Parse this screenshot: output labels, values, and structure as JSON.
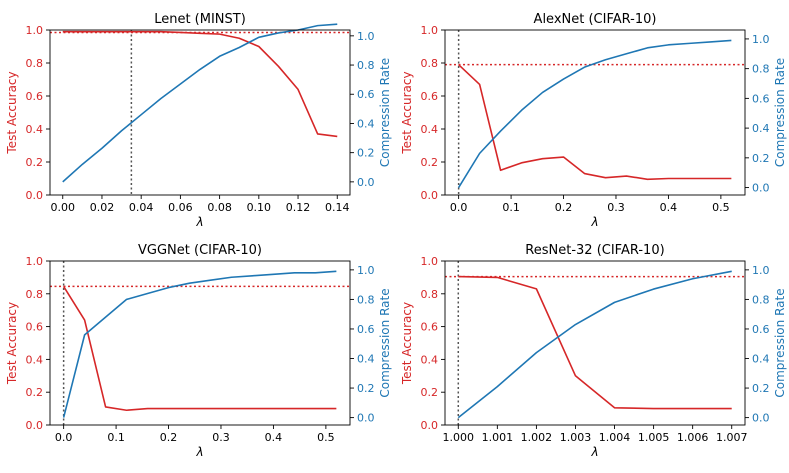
{
  "colors": {
    "accuracy": "#d62728",
    "compression": "#1f77b4",
    "axis": "#000000"
  },
  "chart_data": [
    {
      "type": "line",
      "title": "Lenet (MINST)",
      "xlabel": "λ",
      "ylabel_left": "Test Accuracy",
      "ylabel_right": "Compression Rate",
      "xlim": [
        -0.0065,
        0.1465
      ],
      "ylim_left": [
        0,
        1
      ],
      "ylim_right": [
        -0.09,
        1.04
      ],
      "xticks": [
        0.0,
        0.02,
        0.04,
        0.06,
        0.08,
        0.1,
        0.12,
        0.14
      ],
      "xtick_labels": [
        "0.00",
        "0.02",
        "0.04",
        "0.06",
        "0.08",
        "0.10",
        "0.12",
        "0.14"
      ],
      "yticks_left": [
        0.0,
        0.2,
        0.4,
        0.6,
        0.8,
        1.0
      ],
      "ytick_labels_left": [
        "0.0",
        "0.2",
        "0.4",
        "0.6",
        "0.8",
        "1.0"
      ],
      "yticks_right": [
        0.0,
        0.2,
        0.4,
        0.6,
        0.8,
        1.0
      ],
      "ytick_labels_right": [
        "0.0",
        "0.2",
        "0.4",
        "0.6",
        "0.8",
        "1.0"
      ],
      "hline_accuracy": 0.985,
      "vline_x": 0.035,
      "series": [
        {
          "name": "Test Accuracy",
          "axis": "left",
          "x": [
            0,
            0.01,
            0.02,
            0.03,
            0.04,
            0.05,
            0.06,
            0.07,
            0.08,
            0.09,
            0.1,
            0.11,
            0.12,
            0.13,
            0.14
          ],
          "values": [
            0.99,
            0.99,
            0.99,
            0.99,
            0.99,
            0.99,
            0.985,
            0.98,
            0.975,
            0.95,
            0.9,
            0.78,
            0.64,
            0.37,
            0.355
          ]
        },
        {
          "name": "Compression Rate",
          "axis": "right",
          "x": [
            0,
            0.01,
            0.02,
            0.03,
            0.04,
            0.05,
            0.06,
            0.07,
            0.08,
            0.09,
            0.1,
            0.11,
            0.12,
            0.13,
            0.14
          ],
          "values": [
            0.0,
            0.12,
            0.23,
            0.35,
            0.46,
            0.57,
            0.67,
            0.77,
            0.86,
            0.92,
            0.99,
            1.02,
            1.04,
            1.07,
            1.08
          ]
        }
      ]
    },
    {
      "type": "line",
      "title": "AlexNet (CIFAR-10)",
      "xlabel": "λ",
      "ylabel_left": "Test Accuracy",
      "ylabel_right": "Compression Rate",
      "xlim": [
        -0.026,
        0.546
      ],
      "ylim_left": [
        0,
        1
      ],
      "ylim_right": [
        -0.05,
        1.06
      ],
      "xticks": [
        0.0,
        0.1,
        0.2,
        0.3,
        0.4,
        0.5
      ],
      "xtick_labels": [
        "0.0",
        "0.1",
        "0.2",
        "0.3",
        "0.4",
        "0.5"
      ],
      "yticks_left": [
        0.0,
        0.2,
        0.4,
        0.6,
        0.8,
        1.0
      ],
      "ytick_labels_left": [
        "0.0",
        "0.2",
        "0.4",
        "0.6",
        "0.8",
        "1.0"
      ],
      "yticks_right": [
        0.0,
        0.2,
        0.4,
        0.6,
        0.8,
        1.0
      ],
      "ytick_labels_right": [
        "0.0",
        "0.2",
        "0.4",
        "0.6",
        "0.8",
        "1.0"
      ],
      "hline_accuracy": 0.79,
      "vline_x": 0.0,
      "series": [
        {
          "name": "Test Accuracy",
          "axis": "left",
          "x": [
            0,
            0.04,
            0.08,
            0.12,
            0.16,
            0.2,
            0.24,
            0.28,
            0.32,
            0.36,
            0.4,
            0.44,
            0.48,
            0.52
          ],
          "values": [
            0.79,
            0.67,
            0.15,
            0.195,
            0.22,
            0.23,
            0.13,
            0.105,
            0.115,
            0.095,
            0.1,
            0.1,
            0.1,
            0.1
          ]
        },
        {
          "name": "Compression Rate",
          "axis": "right",
          "x": [
            0,
            0.04,
            0.08,
            0.12,
            0.16,
            0.2,
            0.24,
            0.28,
            0.32,
            0.36,
            0.4,
            0.44,
            0.48,
            0.52
          ],
          "values": [
            0.0,
            0.23,
            0.38,
            0.52,
            0.64,
            0.73,
            0.81,
            0.86,
            0.9,
            0.94,
            0.96,
            0.97,
            0.98,
            0.99
          ]
        }
      ]
    },
    {
      "type": "line",
      "title": "VGGNet (CIFAR-10)",
      "xlabel": "λ",
      "ylabel_left": "Test Accuracy",
      "ylabel_right": "Compression Rate",
      "xlim": [
        -0.026,
        0.546
      ],
      "ylim_left": [
        0,
        1
      ],
      "ylim_right": [
        -0.05,
        1.06
      ],
      "xticks": [
        0.0,
        0.1,
        0.2,
        0.3,
        0.4,
        0.5
      ],
      "xtick_labels": [
        "0.0",
        "0.1",
        "0.2",
        "0.3",
        "0.4",
        "0.5"
      ],
      "yticks_left": [
        0.0,
        0.2,
        0.4,
        0.6,
        0.8,
        1.0
      ],
      "ytick_labels_left": [
        "0.0",
        "0.2",
        "0.4",
        "0.6",
        "0.8",
        "1.0"
      ],
      "yticks_right": [
        0.0,
        0.2,
        0.4,
        0.6,
        0.8,
        1.0
      ],
      "ytick_labels_right": [
        "0.0",
        "0.2",
        "0.4",
        "0.6",
        "0.8",
        "1.0"
      ],
      "hline_accuracy": 0.845,
      "vline_x": 0.0,
      "series": [
        {
          "name": "Test Accuracy",
          "axis": "left",
          "x": [
            0,
            0.04,
            0.08,
            0.12,
            0.16,
            0.2,
            0.24,
            0.28,
            0.32,
            0.36,
            0.4,
            0.44,
            0.48,
            0.52
          ],
          "values": [
            0.845,
            0.64,
            0.11,
            0.09,
            0.1,
            0.1,
            0.1,
            0.1,
            0.1,
            0.1,
            0.1,
            0.1,
            0.1,
            0.1
          ]
        },
        {
          "name": "Compression Rate",
          "axis": "right",
          "x": [
            0,
            0.04,
            0.08,
            0.12,
            0.16,
            0.2,
            0.24,
            0.28,
            0.32,
            0.36,
            0.4,
            0.44,
            0.48,
            0.52
          ],
          "values": [
            0.0,
            0.56,
            0.68,
            0.8,
            0.84,
            0.88,
            0.91,
            0.93,
            0.95,
            0.96,
            0.97,
            0.98,
            0.98,
            0.99
          ]
        }
      ]
    },
    {
      "type": "line",
      "title": "ResNet-32 (CIFAR-10)",
      "xlabel": "λ",
      "ylabel_left": "Test Accuracy",
      "ylabel_right": "Compression Rate",
      "xlim": [
        0.99966,
        1.00734
      ],
      "ylim_left": [
        0,
        1
      ],
      "ylim_right": [
        -0.05,
        1.06
      ],
      "xticks": [
        1.0,
        1.001,
        1.002,
        1.003,
        1.004,
        1.005,
        1.006,
        1.007
      ],
      "xtick_labels": [
        "1.000",
        "1.001",
        "1.002",
        "1.003",
        "1.004",
        "1.005",
        "1.006",
        "1.007"
      ],
      "yticks_left": [
        0.0,
        0.2,
        0.4,
        0.6,
        0.8,
        1.0
      ],
      "ytick_labels_left": [
        "0.0",
        "0.2",
        "0.4",
        "0.6",
        "0.8",
        "1.0"
      ],
      "yticks_right": [
        0.0,
        0.2,
        0.4,
        0.6,
        0.8,
        1.0
      ],
      "ytick_labels_right": [
        "0.0",
        "0.2",
        "0.4",
        "0.6",
        "0.8",
        "1.0"
      ],
      "hline_accuracy": 0.905,
      "vline_x": 1.0,
      "series": [
        {
          "name": "Test Accuracy",
          "axis": "left",
          "x": [
            1.0,
            1.001,
            1.002,
            1.003,
            1.004,
            1.005,
            1.006,
            1.007
          ],
          "values": [
            0.905,
            0.9,
            0.83,
            0.3,
            0.105,
            0.1,
            0.1,
            0.1
          ]
        },
        {
          "name": "Compression Rate",
          "axis": "right",
          "x": [
            1.0,
            1.001,
            1.002,
            1.003,
            1.004,
            1.005,
            1.006,
            1.007
          ],
          "values": [
            0.0,
            0.21,
            0.44,
            0.63,
            0.78,
            0.87,
            0.94,
            0.99
          ]
        }
      ]
    }
  ]
}
